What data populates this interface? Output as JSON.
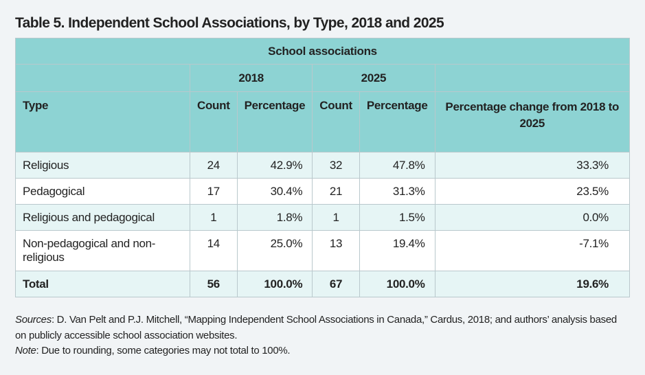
{
  "title": "Table 5. Independent School Associations, by Type, 2018 and 2025",
  "table": {
    "group_header": "School associations",
    "years": [
      "2018",
      "2025"
    ],
    "columns": [
      "Type",
      "Count",
      "Percentage",
      "Count",
      "Percentage",
      "Percentage change from 2018 to 2025"
    ],
    "rows": [
      [
        "Religious",
        "24",
        "42.9%",
        "32",
        "47.8%",
        "33.3%"
      ],
      [
        "Pedagogical",
        "17",
        "30.4%",
        "21",
        "31.3%",
        "23.5%"
      ],
      [
        "Religious and pedagogical",
        "1",
        "1.8%",
        "1",
        "1.5%",
        "0.0%"
      ],
      [
        "Non-pedagogical and non-religious",
        "14",
        "25.0%",
        "13",
        "19.4%",
        "-7.1%"
      ],
      [
        "Total",
        "56",
        "100.0%",
        "67",
        "100.0%",
        "19.6%"
      ]
    ]
  },
  "notes": {
    "sources_label": "Sources",
    "sources_text": ": D. Van Pelt and P.J. Mitchell, “Mapping Independent School Associations in Canada,” Cardus, 2018; and authors’ analysis based on publicly accessible school association websites.",
    "note_label": "Note",
    "note_text": ": Due to rounding, some categories may not total to 100%."
  }
}
